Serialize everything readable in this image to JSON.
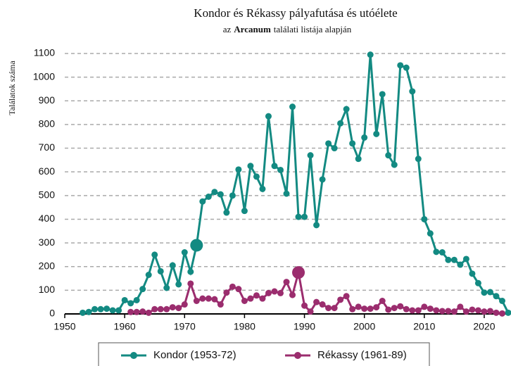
{
  "chart_data": {
    "type": "line",
    "title": "Kondor és Rékassy pályafutása és utóélete",
    "subtitle": [
      "az",
      "Arcanum",
      "találati listája alapján"
    ],
    "ylabel": "Találatok száma",
    "xlim": [
      1950,
      2024
    ],
    "xticks": [
      1950,
      1960,
      1970,
      1980,
      1990,
      2000,
      2010,
      2020
    ],
    "ylim": [
      0,
      1100
    ],
    "yticks": [
      0,
      100,
      200,
      300,
      400,
      500,
      600,
      700,
      800,
      900,
      1000,
      1100
    ],
    "grid": true,
    "legend": "bottom",
    "series": [
      {
        "name": "Kondor (1953-72)",
        "color": "#138a82",
        "highlight": 1972,
        "x": [
          1953,
          1954,
          1955,
          1956,
          1957,
          1958,
          1959,
          1960,
          1961,
          1962,
          1963,
          1964,
          1965,
          1966,
          1967,
          1968,
          1969,
          1970,
          1971,
          1972,
          1973,
          1974,
          1975,
          1976,
          1977,
          1978,
          1979,
          1980,
          1981,
          1982,
          1983,
          1984,
          1985,
          1986,
          1987,
          1988,
          1989,
          1990,
          1991,
          1992,
          1993,
          1994,
          1995,
          1996,
          1997,
          1998,
          1999,
          2000,
          2001,
          2002,
          2003,
          2004,
          2005,
          2006,
          2007,
          2008,
          2009,
          2010,
          2011,
          2012,
          2013,
          2014,
          2015,
          2016,
          2017,
          2018,
          2019,
          2020,
          2021,
          2022,
          2023,
          2024
        ],
        "values": [
          5,
          8,
          20,
          20,
          22,
          15,
          15,
          58,
          45,
          58,
          105,
          165,
          250,
          180,
          110,
          205,
          125,
          260,
          178,
          290,
          475,
          495,
          515,
          505,
          428,
          500,
          610,
          435,
          625,
          580,
          528,
          835,
          625,
          608,
          508,
          875,
          410,
          410,
          670,
          375,
          568,
          720,
          700,
          805,
          865,
          720,
          655,
          745,
          1095,
          760,
          928,
          670,
          630,
          1050,
          1040,
          940,
          655,
          400,
          340,
          262,
          260,
          228,
          228,
          208,
          232,
          170,
          130,
          90,
          92,
          75,
          55,
          5
        ]
      },
      {
        "name": "Rékassy (1961-89)",
        "color": "#9b2d6e",
        "highlight": 1989,
        "x": [
          1961,
          1962,
          1963,
          1964,
          1965,
          1966,
          1967,
          1968,
          1969,
          1970,
          1971,
          1972,
          1973,
          1974,
          1975,
          1976,
          1977,
          1978,
          1979,
          1980,
          1981,
          1982,
          1983,
          1984,
          1985,
          1986,
          1987,
          1988,
          1989,
          1990,
          1991,
          1992,
          1993,
          1994,
          1995,
          1996,
          1997,
          1998,
          1999,
          2000,
          2001,
          2002,
          2003,
          2004,
          2005,
          2006,
          2007,
          2008,
          2009,
          2010,
          2011,
          2012,
          2013,
          2014,
          2015,
          2016,
          2017,
          2018,
          2019,
          2020,
          2021,
          2022,
          2023
        ],
        "values": [
          8,
          8,
          10,
          5,
          20,
          20,
          20,
          28,
          25,
          40,
          128,
          55,
          65,
          65,
          62,
          40,
          90,
          115,
          105,
          55,
          65,
          78,
          65,
          88,
          95,
          88,
          135,
          80,
          175,
          35,
          10,
          50,
          40,
          25,
          25,
          60,
          75,
          20,
          30,
          22,
          22,
          28,
          55,
          18,
          25,
          32,
          20,
          15,
          15,
          30,
          22,
          15,
          12,
          12,
          10,
          30,
          10,
          18,
          15,
          10,
          12,
          5,
          2
        ]
      }
    ]
  }
}
